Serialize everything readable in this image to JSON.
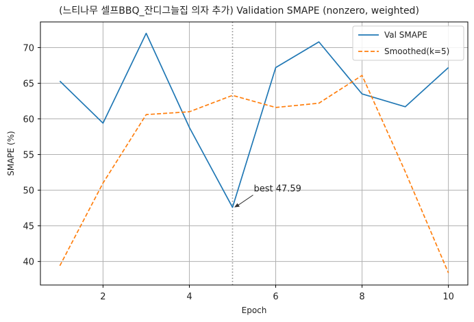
{
  "chart_data": {
    "type": "line",
    "title": "(느티나무 셀프BBQ_잔디그늘집 의자 추가) Validation SMAPE (nonzero, weighted)",
    "xlabel": "Epoch",
    "ylabel": "SMAPE (%)",
    "x": [
      1,
      2,
      3,
      4,
      5,
      6,
      7,
      8,
      9,
      10
    ],
    "xlim": [
      0.55,
      10.45
    ],
    "ylim": [
      36.7,
      73.6
    ],
    "xticks": [
      2,
      4,
      6,
      8,
      10
    ],
    "yticks": [
      40,
      45,
      50,
      55,
      60,
      65,
      70
    ],
    "grid": true,
    "legend_position": "top-right",
    "series": [
      {
        "name": "Val SMAPE",
        "values": [
          65.3,
          59.4,
          72.0,
          58.8,
          47.59,
          67.2,
          70.8,
          63.5,
          61.7,
          67.2
        ],
        "color": "#1f77b4",
        "style": "solid"
      },
      {
        "name": "Smoothed(k=5)",
        "values": [
          39.4,
          51.0,
          60.6,
          61.0,
          63.3,
          61.6,
          62.2,
          66.1,
          52.6,
          38.4
        ],
        "color": "#ff7f0e",
        "style": "dashed"
      }
    ],
    "vline": {
      "x": 5,
      "color": "#888888",
      "style": "dotted"
    },
    "annotation": {
      "text": "best 47.59",
      "x": 5,
      "y": 47.59
    }
  }
}
